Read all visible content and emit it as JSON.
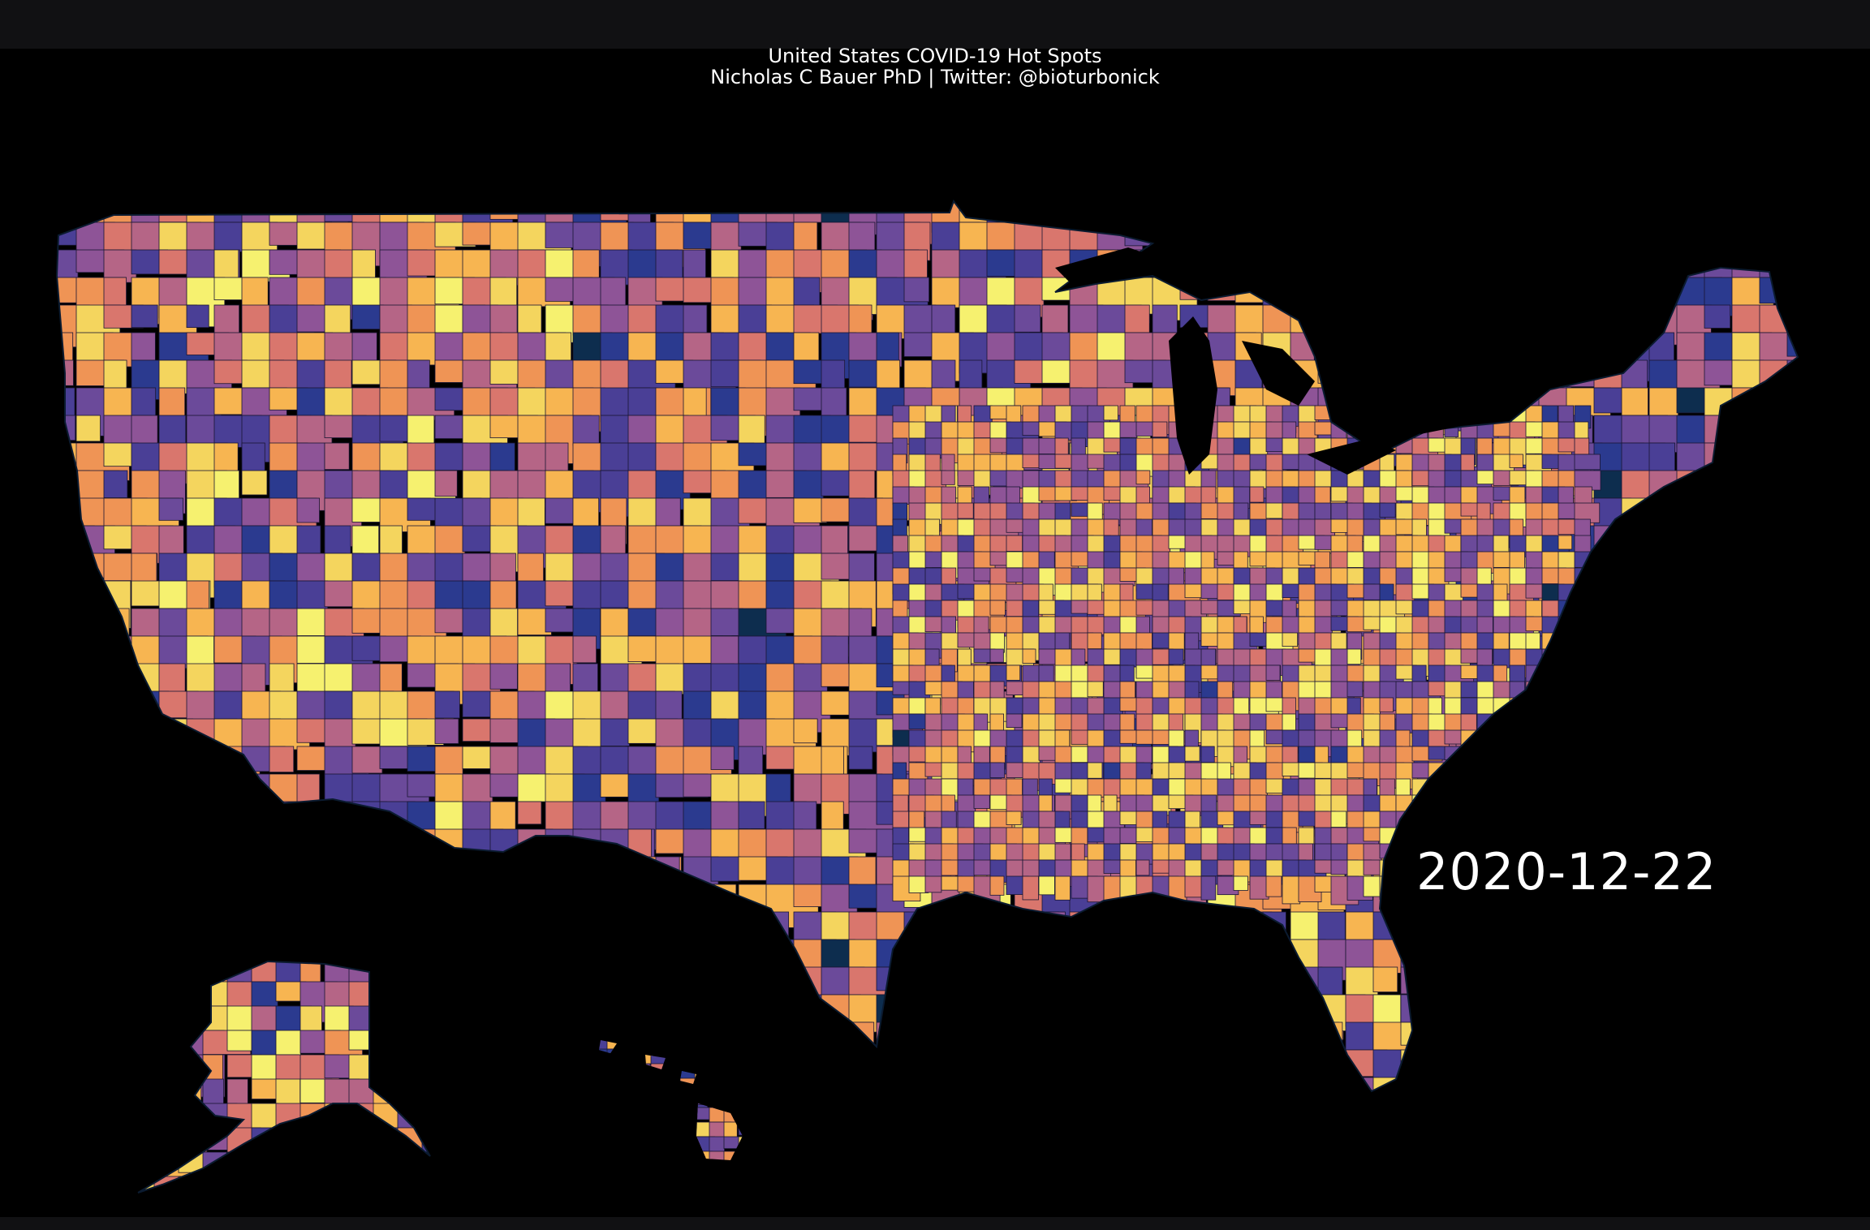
{
  "header": {
    "title": "United States COVID-19 Hot Spots",
    "subtitle": "Nicholas C Bauer PhD | Twitter: @bioturbonick"
  },
  "map": {
    "date_label": "2020-12-22",
    "palette": [
      "#0d2d4e",
      "#2b3a8f",
      "#4a3f96",
      "#6b4a9a",
      "#8e5497",
      "#b56586",
      "#d9766d",
      "#ef9455",
      "#f7b551",
      "#f4d55e",
      "#f6f16f"
    ],
    "background_color": "#000000",
    "regions": [
      "contiguous-us",
      "alaska",
      "hawaii"
    ]
  }
}
